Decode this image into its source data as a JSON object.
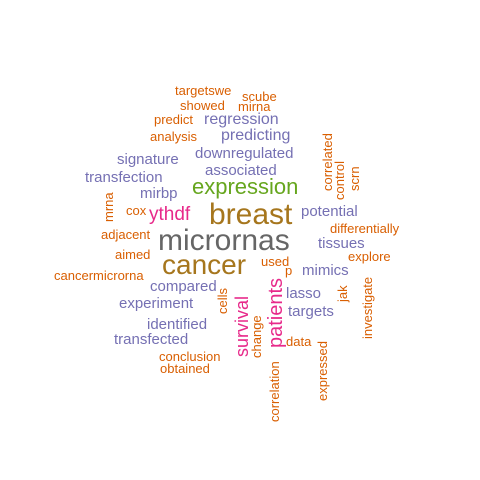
{
  "palette": {
    "gray": "#666666",
    "brown": "#A6761D",
    "green": "#66A61E",
    "pink": "#E7298A",
    "purple": "#7570B3",
    "orange": "#D95F02"
  },
  "words": [
    {
      "text": "micrornas",
      "color": "gray"
    },
    {
      "text": "breast",
      "color": "brown"
    },
    {
      "text": "cancer",
      "color": "brown"
    },
    {
      "text": "expression",
      "color": "green"
    },
    {
      "text": "ythdf",
      "color": "pink"
    },
    {
      "text": "patients",
      "color": "pink"
    },
    {
      "text": "survival",
      "color": "pink"
    },
    {
      "text": "regression",
      "color": "purple"
    },
    {
      "text": "predicting",
      "color": "purple"
    },
    {
      "text": "signature",
      "color": "purple"
    },
    {
      "text": "downregulated",
      "color": "purple"
    },
    {
      "text": "associated",
      "color": "purple"
    },
    {
      "text": "transfection",
      "color": "purple"
    },
    {
      "text": "mirbp",
      "color": "purple"
    },
    {
      "text": "potential",
      "color": "purple"
    },
    {
      "text": "tissues",
      "color": "purple"
    },
    {
      "text": "mimics",
      "color": "purple"
    },
    {
      "text": "compared",
      "color": "purple"
    },
    {
      "text": "experiment",
      "color": "purple"
    },
    {
      "text": "lasso",
      "color": "purple"
    },
    {
      "text": "targets",
      "color": "purple"
    },
    {
      "text": "identified",
      "color": "purple"
    },
    {
      "text": "transfected",
      "color": "purple"
    },
    {
      "text": "targetswe",
      "color": "orange"
    },
    {
      "text": "scube",
      "color": "orange"
    },
    {
      "text": "showed",
      "color": "orange"
    },
    {
      "text": "mirna",
      "color": "orange"
    },
    {
      "text": "predict",
      "color": "orange"
    },
    {
      "text": "analysis",
      "color": "orange"
    },
    {
      "text": "correlated",
      "color": "orange"
    },
    {
      "text": "control",
      "color": "orange"
    },
    {
      "text": "scrn",
      "color": "orange"
    },
    {
      "text": "mrna",
      "color": "orange"
    },
    {
      "text": "cox",
      "color": "orange"
    },
    {
      "text": "adjacent",
      "color": "orange"
    },
    {
      "text": "aimed",
      "color": "orange"
    },
    {
      "text": "cancermicrorna",
      "color": "orange"
    },
    {
      "text": "differentially",
      "color": "orange"
    },
    {
      "text": "explore",
      "color": "orange"
    },
    {
      "text": "used",
      "color": "orange"
    },
    {
      "text": "p",
      "color": "orange"
    },
    {
      "text": "jak",
      "color": "orange"
    },
    {
      "text": "investigate",
      "color": "orange"
    },
    {
      "text": "cells",
      "color": "orange"
    },
    {
      "text": "change",
      "color": "orange"
    },
    {
      "text": "data",
      "color": "orange"
    },
    {
      "text": "conclusion",
      "color": "orange"
    },
    {
      "text": "obtained",
      "color": "orange"
    },
    {
      "text": "correlation",
      "color": "orange"
    },
    {
      "text": "expressed",
      "color": "orange"
    }
  ]
}
